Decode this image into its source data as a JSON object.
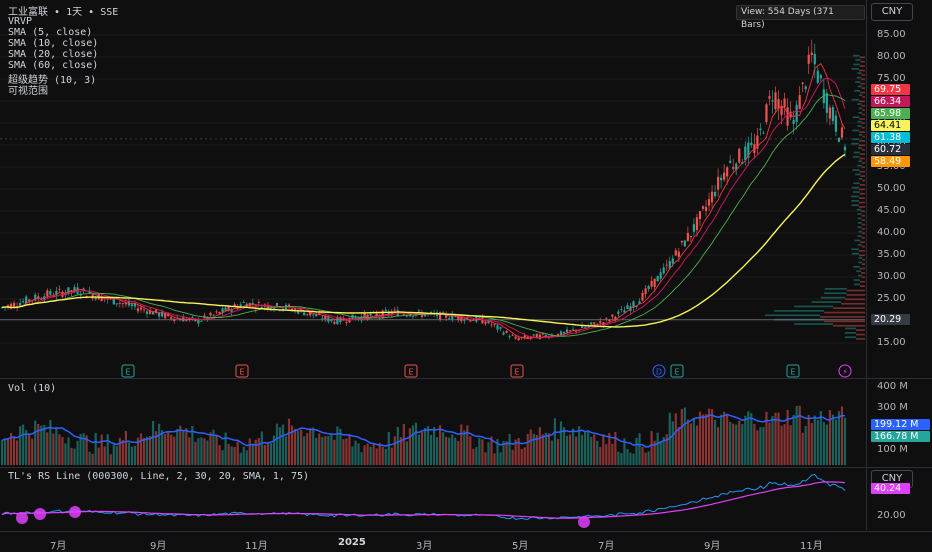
{
  "header": {
    "symbol_name": "工业富联",
    "interval": "1天",
    "exchange": "SSE",
    "view_info": "View: 554 Days (371 Bars)",
    "currency": "CNY"
  },
  "indicators": [
    "VRVP",
    "SMA (5, close)",
    "SMA (10, close)",
    "SMA (20, close)",
    "SMA (60, close)",
    "超级趋势 (10, 3)",
    "可视范围"
  ],
  "price_axis": {
    "ticks": [
      "85.00",
      "80.00",
      "75.00",
      "70.00",
      "65.00",
      "60.00",
      "55.00",
      "50.00",
      "45.00",
      "40.00",
      "35.00",
      "30.00",
      "25.00",
      "20.00",
      "15.00"
    ],
    "badges": [
      {
        "label": "69.75",
        "color": "#f23645"
      },
      {
        "label": "66.34",
        "color": "#c2185b"
      },
      {
        "label": "65.98",
        "color": "#4caf50"
      },
      {
        "label": "64.41",
        "color": "#f7f35a"
      },
      {
        "label": "61.38",
        "color": "#00bcd4"
      },
      {
        "label": "60.72",
        "color": "#2a2e39"
      },
      {
        "label": "58.49",
        "color": "#ff9800"
      },
      {
        "label": "20.29",
        "color": "#363a45"
      }
    ]
  },
  "volume_pane": {
    "title": "Vol (10)",
    "ticks": [
      "400 M",
      "300 M",
      "100 M"
    ],
    "badges": [
      {
        "label": "199.12 M",
        "color": "#2962ff"
      },
      {
        "label": "166.78 M",
        "color": "#26a69a"
      }
    ]
  },
  "rs_pane": {
    "title": "TL's RS Line (000300, Line, 2, 30, 20, SMA, 1, 75)",
    "ticks": [
      "20.00"
    ],
    "badge": {
      "label": "40.24",
      "color": "#e040fb"
    },
    "currency": "CNY"
  },
  "time_axis": [
    "7月",
    "9月",
    "11月",
    "2025",
    "3月",
    "5月",
    "7月",
    "9月",
    "11月"
  ],
  "event_markers": [
    "E",
    "E",
    "E",
    "E",
    "D",
    "E",
    "E",
    "⚡"
  ],
  "colors": {
    "up": "#26a69a",
    "down": "#ef5350",
    "sma5": "#f23645",
    "sma10": "#c2185b",
    "sma20": "#4caf50",
    "sma60": "#f7f35a",
    "rs": "#e040fb",
    "vol_ma": "#2962ff"
  }
}
